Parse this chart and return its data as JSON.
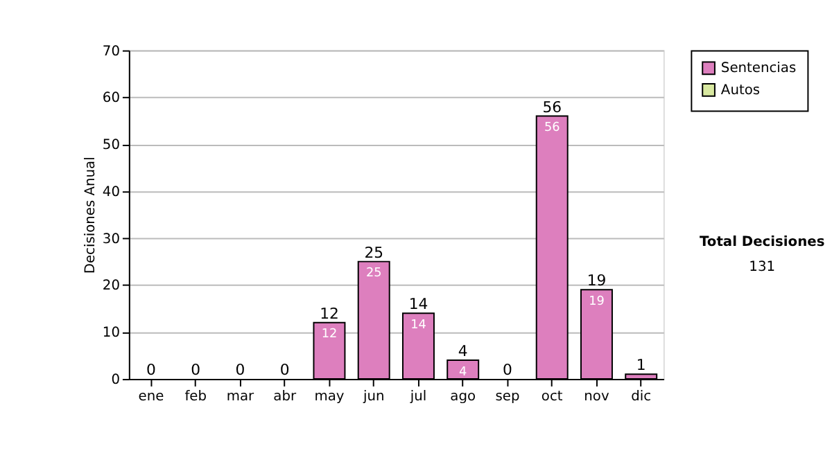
{
  "chart_data": {
    "type": "bar",
    "stacked": true,
    "ylabel": "Decisiones Anual",
    "categories": [
      "ene",
      "feb",
      "mar",
      "abr",
      "may",
      "jun",
      "jul",
      "ago",
      "sep",
      "oct",
      "nov",
      "dic"
    ],
    "series": [
      {
        "name": "Sentencias",
        "color": "#dd7fbe",
        "values": [
          0,
          0,
          0,
          0,
          12,
          25,
          14,
          4,
          0,
          56,
          19,
          1
        ],
        "value_labels": [
          null,
          null,
          null,
          null,
          "12",
          "25",
          "14",
          "4",
          null,
          "56",
          "19",
          null
        ]
      },
      {
        "name": "Autos",
        "color": "#d8e8a0",
        "values": [
          0,
          0,
          0,
          0,
          0,
          0,
          0,
          0,
          0,
          0,
          0,
          0
        ]
      }
    ],
    "totals": [
      "0",
      "0",
      "0",
      "0",
      "12",
      "25",
      "14",
      "4",
      "0",
      "56",
      "19",
      "1"
    ],
    "ylim": [
      0,
      70
    ],
    "yticks": [
      0,
      10,
      20,
      30,
      40,
      50,
      60,
      70
    ],
    "grid": "y",
    "legend": "right",
    "annotations": [
      "Total Decisiones",
      "131"
    ]
  }
}
